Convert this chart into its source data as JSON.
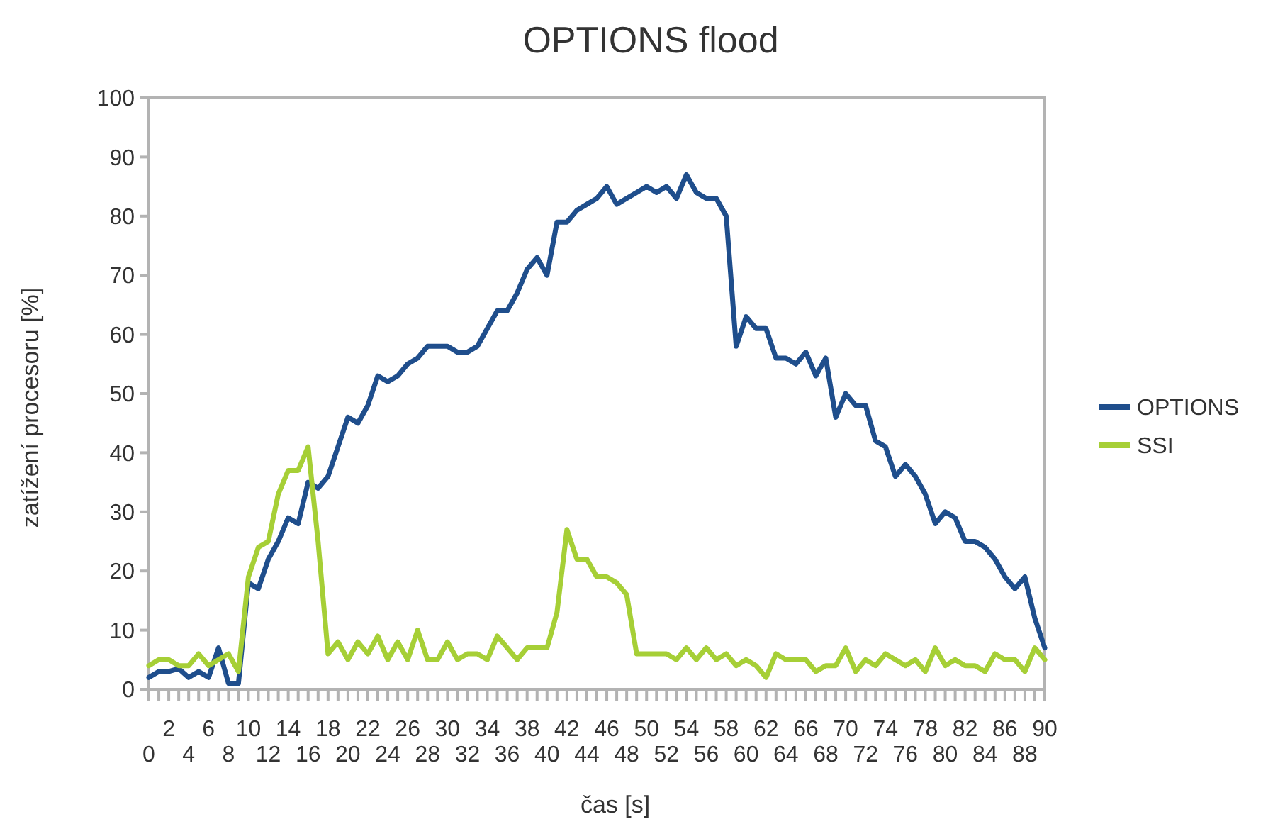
{
  "chart_data": {
    "type": "line",
    "title": "OPTIONS flood",
    "xlabel": "čas [s]",
    "ylabel": "zatížení procesoru [%]",
    "legend": "right",
    "grid": false,
    "marker": "none",
    "line_style": "solid",
    "x": [
      0,
      1,
      2,
      3,
      4,
      5,
      6,
      7,
      8,
      9,
      10,
      11,
      12,
      13,
      14,
      15,
      16,
      17,
      18,
      19,
      20,
      21,
      22,
      23,
      24,
      25,
      26,
      27,
      28,
      29,
      30,
      31,
      32,
      33,
      34,
      35,
      36,
      37,
      38,
      39,
      40,
      41,
      42,
      43,
      44,
      45,
      46,
      47,
      48,
      49,
      50,
      51,
      52,
      53,
      54,
      55,
      56,
      57,
      58,
      59,
      60,
      61,
      62,
      63,
      64,
      65,
      66,
      67,
      68,
      69,
      70,
      71,
      72,
      73,
      74,
      75,
      76,
      77,
      78,
      79,
      80,
      81,
      82,
      83,
      84,
      85,
      86,
      87,
      88,
      89,
      90
    ],
    "xlim": [
      0,
      90
    ],
    "xticks": [
      {
        "value": 1,
        "label": null
      },
      2,
      {
        "value": 3,
        "label": null
      },
      {
        "value": 5,
        "label": null
      },
      6,
      {
        "value": 7,
        "label": null
      },
      {
        "value": 9,
        "label": null
      },
      10,
      {
        "value": 11,
        "label": null
      },
      {
        "value": 13,
        "label": null
      },
      14,
      {
        "value": 15,
        "label": null
      },
      {
        "value": 17,
        "label": null
      },
      18,
      {
        "value": 19,
        "label": null
      },
      {
        "value": 21,
        "label": null
      },
      22,
      {
        "value": 23,
        "label": null
      },
      {
        "value": 25,
        "label": null
      },
      26,
      {
        "value": 27,
        "label": null
      },
      {
        "value": 29,
        "label": null
      },
      30,
      {
        "value": 31,
        "label": null
      },
      {
        "value": 33,
        "label": null
      },
      34,
      {
        "value": 35,
        "label": null
      },
      {
        "value": 37,
        "label": null
      },
      38,
      {
        "value": 39,
        "label": null
      },
      {
        "value": 41,
        "label": null
      },
      42,
      {
        "value": 43,
        "label": null
      },
      {
        "value": 45,
        "label": null
      },
      46,
      {
        "value": 47,
        "label": null
      },
      {
        "value": 49,
        "label": null
      },
      50,
      {
        "value": 51,
        "label": null
      },
      {
        "value": 53,
        "label": null
      },
      54,
      {
        "value": 55,
        "label": null
      },
      {
        "value": 57,
        "label": null
      },
      58,
      {
        "value": 59,
        "label": null
      },
      {
        "value": 61,
        "label": null
      },
      62,
      {
        "value": 63,
        "label": null
      },
      {
        "value": 65,
        "label": null
      },
      66,
      {
        "value": 67,
        "label": null
      },
      {
        "value": 69,
        "label": null
      },
      70,
      {
        "value": 71,
        "label": null
      },
      {
        "value": 73,
        "label": null
      },
      74,
      {
        "value": 75,
        "label": null
      },
      {
        "value": 77,
        "label": null
      },
      78,
      {
        "value": 79,
        "label": null
      },
      {
        "value": 81,
        "label": null
      },
      82,
      {
        "value": 83,
        "label": null
      },
      {
        "value": 85,
        "label": null
      },
      86,
      {
        "value": 87,
        "label": null
      },
      {
        "value": 89,
        "label": null
      },
      90
    ],
    "x2lim": [
      0,
      90
    ],
    "x2ticks": [
      0,
      4,
      8,
      12,
      16,
      20,
      24,
      28,
      32,
      36,
      40,
      44,
      48,
      52,
      56,
      60,
      64,
      68,
      72,
      76,
      80,
      84,
      88
    ],
    "ylim": [
      0,
      100
    ],
    "yticks": [
      0,
      10,
      20,
      30,
      40,
      50,
      60,
      70,
      80,
      90,
      100
    ],
    "series": [
      {
        "name": "OPTIONS",
        "color": "#1f4e8c",
        "values": [
          2,
          3,
          3,
          3.5,
          2,
          3,
          2,
          7,
          1,
          1,
          18,
          17,
          22,
          25,
          29,
          28,
          35,
          34,
          36,
          41,
          46,
          45,
          48,
          53,
          52,
          53,
          55,
          56,
          58,
          58,
          58,
          57,
          57,
          58,
          61,
          64,
          64,
          67,
          71,
          73,
          70,
          79,
          79,
          81,
          82,
          83,
          85,
          82,
          83,
          84,
          85,
          84,
          85,
          83,
          87,
          84,
          83,
          83,
          80,
          58,
          63,
          61,
          61,
          56,
          56,
          55,
          57,
          53,
          56,
          46,
          50,
          48,
          48,
          42,
          41,
          36,
          38,
          36,
          33,
          28,
          30,
          29,
          25,
          25,
          24,
          22,
          19,
          17,
          19,
          12,
          7
        ]
      },
      {
        "name": "SSI",
        "color": "#a6cf36",
        "values": [
          4,
          5,
          5,
          4,
          4,
          6,
          4,
          5,
          6,
          3,
          19,
          24,
          25,
          33,
          37,
          37,
          41,
          25,
          6,
          8,
          5,
          8,
          6,
          9,
          5,
          8,
          5,
          10,
          5,
          5,
          8,
          5,
          6,
          6,
          5,
          9,
          7,
          5,
          7,
          7,
          7,
          13,
          27,
          22,
          22,
          19,
          19,
          18,
          16,
          6,
          6,
          6,
          6,
          5,
          7,
          5,
          7,
          5,
          6,
          4,
          5,
          4,
          2,
          6,
          5,
          5,
          5,
          3,
          4,
          4,
          7,
          3,
          5,
          4,
          6,
          5,
          4,
          5,
          3,
          7,
          4,
          5,
          4,
          4,
          3,
          6,
          5,
          5,
          3,
          7,
          5
        ]
      }
    ]
  }
}
